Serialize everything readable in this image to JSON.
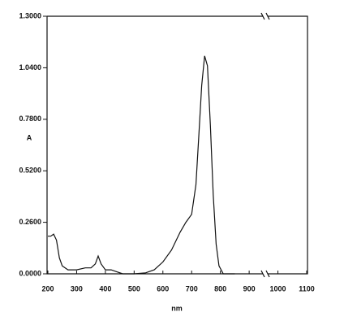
{
  "chart_data": {
    "type": "line",
    "x_label": "nm",
    "y_label": "A",
    "x": [
      200,
      210,
      220,
      230,
      240,
      250,
      270,
      300,
      330,
      350,
      365,
      375,
      385,
      400,
      420,
      440,
      460,
      500,
      540,
      570,
      600,
      630,
      660,
      680,
      700,
      715,
      725,
      735,
      745,
      755,
      765,
      775,
      785,
      795,
      810,
      850
    ],
    "values": [
      0.19,
      0.19,
      0.2,
      0.17,
      0.08,
      0.04,
      0.02,
      0.02,
      0.03,
      0.03,
      0.05,
      0.09,
      0.05,
      0.02,
      0.02,
      0.01,
      0.0,
      0.0,
      0.005,
      0.02,
      0.06,
      0.12,
      0.21,
      0.26,
      0.3,
      0.45,
      0.7,
      0.95,
      1.1,
      1.05,
      0.75,
      0.4,
      0.15,
      0.04,
      0.0,
      0.0
    ],
    "color": "#111111",
    "xlim": [
      200,
      1100
    ],
    "xticks": [
      200,
      300,
      400,
      500,
      600,
      700,
      800,
      900,
      1000,
      1100
    ],
    "ylim": [
      0,
      1.3
    ],
    "yticks": [
      {
        "value": 0,
        "label": "0.0000"
      },
      {
        "value": 0.26,
        "label": "0.2600"
      },
      {
        "value": 0.52,
        "label": "0.5200"
      },
      {
        "value": 0.78,
        "label": "0.7800"
      },
      {
        "value": 1.04,
        "label": "1.0400"
      },
      {
        "value": 1.3,
        "label": "1.3000"
      }
    ]
  }
}
